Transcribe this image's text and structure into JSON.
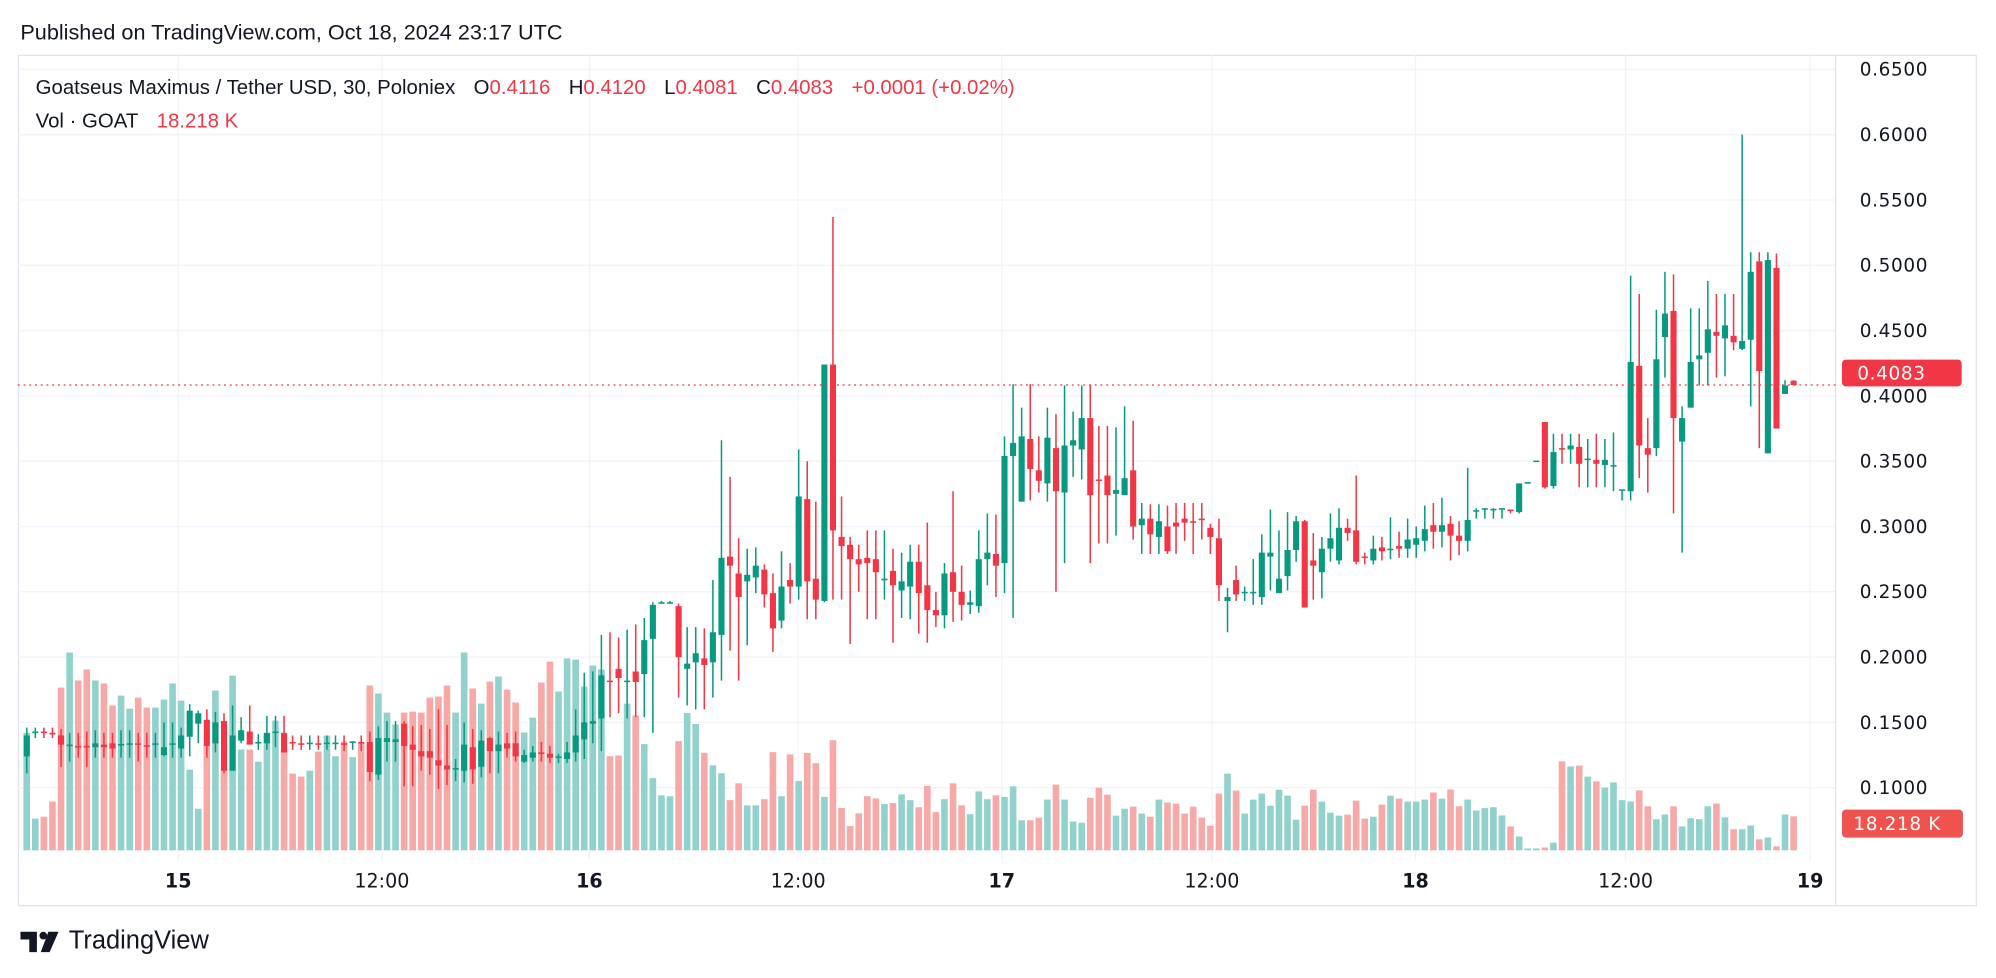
{
  "header": {
    "published": "Published on TradingView.com, Oct 18, 2024 23:17 UTC"
  },
  "legend": {
    "symbol": "Goatseus Maximus / Tether USD, 30, Poloniex",
    "o_label": "O",
    "o_value": "0.4116",
    "h_label": "H",
    "h_value": "0.4120",
    "l_label": "L",
    "l_value": "0.4081",
    "c_label": "C",
    "c_value": "0.4083",
    "change": "+0.0001 (+0.02%)",
    "vol_label": "Vol · GOAT",
    "vol_value": "18.218 K"
  },
  "price_tag": "0.4083",
  "volume_tag": "18.218 K",
  "footer": {
    "brand": "TradingView",
    "logo": "tradingview-logo-icon"
  },
  "colors": {
    "up": "#089981",
    "down": "#f23645",
    "volume_up": "#92d2cc",
    "volume_down": "#f7a9a7",
    "grid": "#f0f3fa",
    "text": "#131722"
  },
  "chart_data": {
    "type": "candlestick",
    "interval": "30",
    "title": "Goatseus Maximus / Tether USD, 30, Poloniex",
    "ylim": [
      0.1,
      0.65
    ],
    "y_ticks": [
      "0.6500",
      "0.6000",
      "0.5500",
      "0.5000",
      "0.4500",
      "0.4000",
      "0.3500",
      "0.3000",
      "0.2500",
      "0.2000",
      "0.1500",
      "0.1000"
    ],
    "x_ticks": [
      {
        "label": "15",
        "bold": true
      },
      {
        "label": "12:00",
        "bold": false
      },
      {
        "label": "16",
        "bold": true
      },
      {
        "label": "12:00",
        "bold": false
      },
      {
        "label": "17",
        "bold": true
      },
      {
        "label": "12:00",
        "bold": false
      },
      {
        "label": "18",
        "bold": true
      },
      {
        "label": "12:00",
        "bold": false
      },
      {
        "label": "19",
        "bold": true
      }
    ],
    "last_price": 0.4083,
    "grid": true,
    "volume_unit": "K",
    "candles_ohlc": [
      [
        0.124,
        0.146,
        0.111,
        0.14
      ],
      [
        0.142,
        0.146,
        0.138,
        0.143
      ],
      [
        0.143,
        0.146,
        0.138,
        0.142
      ],
      [
        0.142,
        0.146,
        0.138,
        0.141
      ],
      [
        0.14,
        0.145,
        0.116,
        0.133
      ],
      [
        0.132,
        0.142,
        0.12,
        0.133
      ],
      [
        0.132,
        0.142,
        0.123,
        0.131
      ],
      [
        0.132,
        0.143,
        0.116,
        0.131
      ],
      [
        0.131,
        0.144,
        0.123,
        0.134
      ],
      [
        0.133,
        0.142,
        0.123,
        0.131
      ],
      [
        0.134,
        0.142,
        0.123,
        0.13
      ],
      [
        0.133,
        0.144,
        0.123,
        0.1335
      ],
      [
        0.133,
        0.144,
        0.123,
        0.134
      ],
      [
        0.134,
        0.142,
        0.12,
        0.133
      ],
      [
        0.1325,
        0.142,
        0.123,
        0.132
      ],
      [
        0.133,
        0.142,
        0.123,
        0.134
      ],
      [
        0.125,
        0.15,
        0.124,
        0.131
      ],
      [
        0.133,
        0.15,
        0.123,
        0.134
      ],
      [
        0.13,
        0.146,
        0.123,
        0.14
      ],
      [
        0.139,
        0.164,
        0.124,
        0.159
      ],
      [
        0.149,
        0.159,
        0.134,
        0.157
      ],
      [
        0.152,
        0.16,
        0.123,
        0.132
      ],
      [
        0.134,
        0.158,
        0.127,
        0.15
      ],
      [
        0.151,
        0.157,
        0.111,
        0.113
      ],
      [
        0.113,
        0.163,
        0.113,
        0.14
      ],
      [
        0.136,
        0.154,
        0.134,
        0.144
      ],
      [
        0.143,
        0.163,
        0.133,
        0.133
      ],
      [
        0.134,
        0.141,
        0.129,
        0.135
      ],
      [
        0.134,
        0.155,
        0.129,
        0.142
      ],
      [
        0.142,
        0.155,
        0.131,
        0.143
      ],
      [
        0.142,
        0.155,
        0.127,
        0.127
      ],
      [
        0.135,
        0.14,
        0.129,
        0.134
      ],
      [
        0.134,
        0.14,
        0.129,
        0.133
      ],
      [
        0.134,
        0.14,
        0.129,
        0.1345
      ],
      [
        0.134,
        0.14,
        0.129,
        0.133
      ],
      [
        0.134,
        0.14,
        0.129,
        0.1345
      ],
      [
        0.134,
        0.14,
        0.129,
        0.1345
      ],
      [
        0.134,
        0.14,
        0.128,
        0.133
      ],
      [
        0.135,
        0.135,
        0.129,
        0.1355
      ],
      [
        0.135,
        0.14,
        0.128,
        0.134
      ],
      [
        0.135,
        0.143,
        0.105,
        0.112
      ],
      [
        0.11,
        0.147,
        0.106,
        0.138
      ],
      [
        0.135,
        0.151,
        0.12,
        0.138
      ],
      [
        0.135,
        0.151,
        0.12,
        0.137
      ],
      [
        0.149,
        0.151,
        0.101,
        0.132
      ],
      [
        0.133,
        0.147,
        0.101,
        0.129
      ],
      [
        0.128,
        0.148,
        0.113,
        0.124
      ],
      [
        0.128,
        0.145,
        0.11,
        0.123
      ],
      [
        0.121,
        0.16,
        0.099,
        0.117
      ],
      [
        0.117,
        0.148,
        0.102,
        0.114
      ],
      [
        0.114,
        0.122,
        0.105,
        0.115
      ],
      [
        0.113,
        0.15,
        0.104,
        0.133
      ],
      [
        0.131,
        0.145,
        0.103,
        0.114
      ],
      [
        0.116,
        0.144,
        0.108,
        0.136
      ],
      [
        0.138,
        0.139,
        0.111,
        0.128
      ],
      [
        0.128,
        0.143,
        0.111,
        0.133
      ],
      [
        0.134,
        0.142,
        0.123,
        0.13
      ],
      [
        0.134,
        0.143,
        0.12,
        0.124
      ],
      [
        0.12,
        0.129,
        0.119,
        0.125
      ],
      [
        0.123,
        0.132,
        0.12,
        0.127
      ],
      [
        0.127,
        0.135,
        0.12,
        0.126
      ],
      [
        0.126,
        0.132,
        0.119,
        0.123
      ],
      [
        0.123,
        0.126,
        0.119,
        0.124
      ],
      [
        0.122,
        0.135,
        0.119,
        0.127
      ],
      [
        0.127,
        0.16,
        0.12,
        0.14
      ],
      [
        0.137,
        0.188,
        0.122,
        0.15
      ],
      [
        0.149,
        0.189,
        0.134,
        0.151
      ],
      [
        0.153,
        0.217,
        0.128,
        0.186
      ],
      [
        0.182,
        0.219,
        0.154,
        0.181
      ],
      [
        0.191,
        0.215,
        0.157,
        0.184
      ],
      [
        0.181,
        0.221,
        0.153,
        0.182
      ],
      [
        0.189,
        0.225,
        0.154,
        0.181
      ],
      [
        0.187,
        0.23,
        0.154,
        0.213
      ],
      [
        0.214,
        0.242,
        0.142,
        0.24
      ],
      [
        0.242,
        0.243,
        0.241,
        0.242
      ],
      [
        0.242,
        0.243,
        0.241,
        0.242
      ],
      [
        0.239,
        0.241,
        0.169,
        0.2
      ],
      [
        0.191,
        0.223,
        0.163,
        0.195
      ],
      [
        0.196,
        0.223,
        0.16,
        0.203
      ],
      [
        0.199,
        0.222,
        0.16,
        0.194
      ],
      [
        0.196,
        0.259,
        0.169,
        0.219
      ],
      [
        0.217,
        0.366,
        0.182,
        0.276
      ],
      [
        0.277,
        0.338,
        0.205,
        0.27
      ],
      [
        0.264,
        0.291,
        0.182,
        0.246
      ],
      [
        0.258,
        0.283,
        0.209,
        0.263
      ],
      [
        0.261,
        0.284,
        0.249,
        0.27
      ],
      [
        0.267,
        0.271,
        0.238,
        0.248
      ],
      [
        0.249,
        0.264,
        0.204,
        0.222
      ],
      [
        0.228,
        0.281,
        0.222,
        0.254
      ],
      [
        0.259,
        0.272,
        0.241,
        0.254
      ],
      [
        0.254,
        0.359,
        0.244,
        0.323
      ],
      [
        0.321,
        0.35,
        0.229,
        0.258
      ],
      [
        0.26,
        0.319,
        0.229,
        0.244
      ],
      [
        0.243,
        0.424,
        0.242,
        0.424
      ],
      [
        0.424,
        0.537,
        0.244,
        0.297
      ],
      [
        0.292,
        0.323,
        0.244,
        0.285
      ],
      [
        0.286,
        0.292,
        0.21,
        0.275
      ],
      [
        0.275,
        0.286,
        0.25,
        0.271
      ],
      [
        0.276,
        0.297,
        0.229,
        0.272
      ],
      [
        0.275,
        0.297,
        0.229,
        0.265
      ],
      [
        0.259,
        0.297,
        0.244,
        0.26
      ],
      [
        0.266,
        0.283,
        0.211,
        0.255
      ],
      [
        0.251,
        0.28,
        0.23,
        0.258
      ],
      [
        0.254,
        0.286,
        0.229,
        0.273
      ],
      [
        0.273,
        0.286,
        0.218,
        0.249
      ],
      [
        0.255,
        0.303,
        0.211,
        0.236
      ],
      [
        0.236,
        0.25,
        0.223,
        0.232
      ],
      [
        0.232,
        0.272,
        0.222,
        0.264
      ],
      [
        0.265,
        0.327,
        0.227,
        0.25
      ],
      [
        0.25,
        0.27,
        0.228,
        0.24
      ],
      [
        0.24,
        0.251,
        0.233,
        0.242
      ],
      [
        0.239,
        0.297,
        0.234,
        0.275
      ],
      [
        0.275,
        0.31,
        0.255,
        0.28
      ],
      [
        0.279,
        0.309,
        0.246,
        0.27
      ],
      [
        0.272,
        0.369,
        0.249,
        0.354
      ],
      [
        0.354,
        0.409,
        0.23,
        0.364
      ],
      [
        0.319,
        0.391,
        0.319,
        0.369
      ],
      [
        0.367,
        0.409,
        0.32,
        0.344
      ],
      [
        0.343,
        0.369,
        0.326,
        0.335
      ],
      [
        0.333,
        0.391,
        0.319,
        0.368
      ],
      [
        0.36,
        0.386,
        0.25,
        0.327
      ],
      [
        0.326,
        0.408,
        0.272,
        0.362
      ],
      [
        0.362,
        0.388,
        0.338,
        0.366
      ],
      [
        0.359,
        0.408,
        0.336,
        0.383
      ],
      [
        0.383,
        0.408,
        0.272,
        0.324
      ],
      [
        0.336,
        0.377,
        0.287,
        0.335
      ],
      [
        0.339,
        0.377,
        0.287,
        0.324
      ],
      [
        0.325,
        0.376,
        0.293,
        0.328
      ],
      [
        0.324,
        0.392,
        0.324,
        0.337
      ],
      [
        0.343,
        0.381,
        0.29,
        0.3
      ],
      [
        0.301,
        0.318,
        0.279,
        0.306
      ],
      [
        0.306,
        0.317,
        0.279,
        0.294
      ],
      [
        0.292,
        0.317,
        0.279,
        0.304
      ],
      [
        0.3,
        0.316,
        0.279,
        0.281
      ],
      [
        0.303,
        0.318,
        0.279,
        0.3
      ],
      [
        0.306,
        0.318,
        0.289,
        0.303
      ],
      [
        0.304,
        0.318,
        0.279,
        0.303
      ],
      [
        0.306,
        0.318,
        0.29,
        0.305
      ],
      [
        0.299,
        0.302,
        0.279,
        0.292
      ],
      [
        0.291,
        0.306,
        0.243,
        0.255
      ],
      [
        0.243,
        0.253,
        0.219,
        0.246
      ],
      [
        0.259,
        0.27,
        0.243,
        0.248
      ],
      [
        0.249,
        0.254,
        0.243,
        0.25
      ],
      [
        0.249,
        0.275,
        0.24,
        0.25
      ],
      [
        0.246,
        0.294,
        0.24,
        0.28
      ],
      [
        0.277,
        0.313,
        0.251,
        0.28
      ],
      [
        0.249,
        0.297,
        0.249,
        0.26
      ],
      [
        0.262,
        0.311,
        0.251,
        0.282
      ],
      [
        0.282,
        0.308,
        0.273,
        0.304
      ],
      [
        0.304,
        0.305,
        0.238,
        0.238
      ],
      [
        0.274,
        0.295,
        0.244,
        0.27
      ],
      [
        0.265,
        0.292,
        0.245,
        0.283
      ],
      [
        0.283,
        0.31,
        0.273,
        0.291
      ],
      [
        0.274,
        0.314,
        0.271,
        0.299
      ],
      [
        0.299,
        0.306,
        0.289,
        0.295
      ],
      [
        0.297,
        0.339,
        0.271,
        0.273
      ],
      [
        0.277,
        0.28,
        0.271,
        0.276
      ],
      [
        0.274,
        0.293,
        0.271,
        0.283
      ],
      [
        0.284,
        0.292,
        0.274,
        0.281
      ],
      [
        0.282,
        0.307,
        0.275,
        0.283
      ],
      [
        0.285,
        0.296,
        0.276,
        0.283
      ],
      [
        0.283,
        0.306,
        0.276,
        0.29
      ],
      [
        0.286,
        0.3,
        0.276,
        0.291
      ],
      [
        0.289,
        0.316,
        0.281,
        0.298
      ],
      [
        0.301,
        0.318,
        0.283,
        0.296
      ],
      [
        0.296,
        0.322,
        0.284,
        0.301
      ],
      [
        0.302,
        0.308,
        0.274,
        0.293
      ],
      [
        0.293,
        0.304,
        0.278,
        0.289
      ],
      [
        0.289,
        0.345,
        0.281,
        0.305
      ],
      [
        0.312,
        0.314,
        0.306,
        0.3125
      ],
      [
        0.313,
        0.314,
        0.306,
        0.314
      ],
      [
        0.313,
        0.314,
        0.306,
        0.3135
      ],
      [
        0.313,
        0.314,
        0.306,
        0.314
      ],
      [
        0.313,
        0.313,
        0.31,
        0.312
      ],
      [
        0.311,
        0.333,
        0.31,
        0.333
      ],
      [
        0.333,
        0.334,
        0.333,
        0.334
      ],
      [
        0.35,
        0.35,
        0.35,
        0.3505
      ],
      [
        0.38,
        0.38,
        0.329,
        0.33
      ],
      [
        0.331,
        0.371,
        0.329,
        0.357
      ],
      [
        0.36,
        0.371,
        0.348,
        0.359
      ],
      [
        0.359,
        0.371,
        0.348,
        0.362
      ],
      [
        0.361,
        0.371,
        0.33,
        0.348
      ],
      [
        0.351,
        0.367,
        0.33,
        0.352
      ],
      [
        0.351,
        0.371,
        0.33,
        0.348
      ],
      [
        0.347,
        0.367,
        0.33,
        0.351
      ],
      [
        0.346,
        0.372,
        0.327,
        0.347
      ],
      [
        0.328,
        0.328,
        0.32,
        0.3285
      ],
      [
        0.327,
        0.492,
        0.32,
        0.426
      ],
      [
        0.423,
        0.478,
        0.337,
        0.362
      ],
      [
        0.36,
        0.383,
        0.326,
        0.355
      ],
      [
        0.36,
        0.466,
        0.354,
        0.428
      ],
      [
        0.445,
        0.495,
        0.414,
        0.463
      ],
      [
        0.465,
        0.493,
        0.31,
        0.383
      ],
      [
        0.365,
        0.392,
        0.28,
        0.383
      ],
      [
        0.391,
        0.467,
        0.391,
        0.426
      ],
      [
        0.428,
        0.467,
        0.408,
        0.431
      ],
      [
        0.433,
        0.488,
        0.408,
        0.451
      ],
      [
        0.449,
        0.478,
        0.414,
        0.446
      ],
      [
        0.444,
        0.478,
        0.415,
        0.454
      ],
      [
        0.446,
        0.478,
        0.435,
        0.441
      ],
      [
        0.436,
        0.6,
        0.435,
        0.442
      ],
      [
        0.443,
        0.51,
        0.392,
        0.495
      ],
      [
        0.503,
        0.51,
        0.36,
        0.419
      ],
      [
        0.356,
        0.51,
        0.356,
        0.504
      ],
      [
        0.498,
        0.509,
        0.375,
        0.375
      ],
      [
        0.4015,
        0.412,
        0.4015,
        0.408
      ],
      [
        0.4116,
        0.412,
        0.4081,
        0.4083
      ]
    ],
    "volumes_k": [
      62.9,
      17.0,
      18.0,
      26.1,
      87.2,
      106.0,
      91.0,
      96.9,
      91.0,
      89.4,
      77.6,
      82.9,
      75.9,
      81.8,
      76.5,
      76.5,
      80.8,
      89.4,
      80.2,
      43.2,
      22.3,
      56.6,
      85.6,
      43.8,
      93.6,
      54.0,
      54.0,
      47.5,
      61.5,
      69.5,
      54.0,
      41.1,
      39.5,
      42.7,
      52.9,
      61.5,
      50.4,
      58.3,
      49.9,
      57.5,
      88.3,
      84.0,
      73.8,
      67.4,
      73.8,
      74.3,
      73.8,
      81.8,
      82.4,
      88.3,
      73.8,
      106.0,
      86.7,
      78.6,
      90.4,
      93.1,
      86.1,
      79.2,
      63.1,
      71.1,
      89.9,
      101.1,
      85.1,
      102.8,
      102.2,
      87.7,
      99.0,
      96.9,
      50.4,
      50.8,
      78.6,
      72.2,
      56.9,
      38.7,
      29.5,
      29.0,
      58.5,
      73.6,
      67.7,
      52.2,
      45.5,
      41.3,
      26.9,
      35.9,
      24.1,
      24.1,
      27.4,
      52.6,
      29.0,
      51.4,
      37.1,
      52.2,
      46.7,
      28.6,
      59.0,
      22.7,
      13.0,
      19.8,
      29.0,
      27.8,
      24.8,
      25.3,
      30.0,
      26.9,
      23.1,
      34.5,
      20.5,
      27.4,
      35.9,
      24.1,
      19.4,
      31.6,
      27.4,
      29.5,
      28.6,
      34.3,
      16.1,
      16.1,
      17.5,
      27.2,
      35.2,
      27.2,
      15.4,
      14.8,
      28.2,
      33.6,
      29.8,
      18.6,
      22.3,
      23.4,
      19.7,
      18.0,
      27.2,
      25.6,
      25.0,
      19.7,
      23.4,
      17.5,
      13.2,
      30.4,
      41.1,
      32.0,
      19.7,
      27.2,
      30.4,
      23.9,
      32.5,
      29.3,
      16.4,
      23.9,
      32.5,
      26.1,
      20.2,
      18.6,
      19.1,
      26.6,
      17.0,
      18.0,
      24.5,
      29.3,
      27.7,
      26.1,
      26.1,
      27.2,
      31.0,
      27.7,
      32.6,
      23.6,
      27.2,
      21.3,
      22.6,
      23.1,
      18.7,
      12.8,
      7.4,
      1.0,
      1.0,
      1.5,
      4.1,
      47.7,
      44.9,
      45.4,
      39.5,
      36.9,
      33.6,
      36.4,
      26.9,
      26.2,
      32.1,
      23.6,
      16.7,
      19.2,
      23.6,
      12.8,
      17.2,
      16.7,
      23.6,
      25.1,
      17.7,
      11.3,
      11.3,
      13.3,
      5.9,
      6.9,
      2.1,
      19.2,
      18.218
    ]
  }
}
